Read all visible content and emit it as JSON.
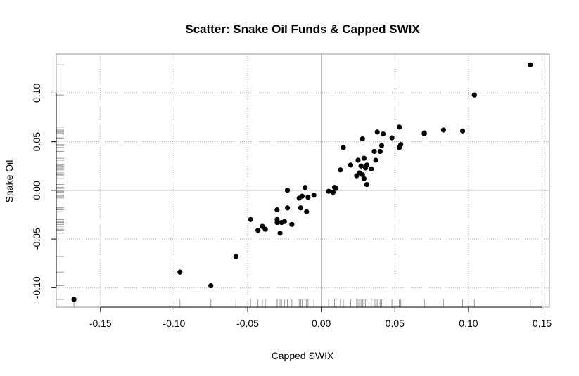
{
  "chart_data": {
    "type": "scatter",
    "title": "Scatter: Snake Oil Funds & Capped SWIX",
    "xlabel": "Capped SWIX",
    "ylabel": "Snake Oil",
    "xlim": [
      -0.18,
      0.155
    ],
    "ylim": [
      -0.12,
      0.14
    ],
    "xticks": [
      -0.15,
      -0.1,
      -0.05,
      0.0,
      0.05,
      0.1,
      0.15
    ],
    "xtick_labels": [
      "-0.15",
      "-0.10",
      "-0.05",
      "0.00",
      "0.05",
      "0.10",
      "0.15"
    ],
    "yticks": [
      -0.1,
      -0.05,
      0.0,
      0.05,
      0.1
    ],
    "ytick_labels": [
      "-0.10",
      "-0.05",
      "0.00",
      "0.05",
      "0.10"
    ],
    "grid": true,
    "reference_lines": {
      "x": 0,
      "y": 0
    },
    "rug": true,
    "colors": {
      "points": "#000000",
      "grid": "#aaaaaa",
      "rug": "#999999",
      "box": "#999999"
    },
    "points": [
      [
        -0.168,
        -0.112
      ],
      [
        -0.096,
        -0.084
      ],
      [
        -0.075,
        -0.098
      ],
      [
        -0.058,
        -0.068
      ],
      [
        -0.048,
        -0.03
      ],
      [
        -0.043,
        -0.041
      ],
      [
        -0.04,
        -0.037
      ],
      [
        -0.038,
        -0.04
      ],
      [
        -0.03,
        -0.02
      ],
      [
        -0.03,
        -0.033
      ],
      [
        -0.028,
        -0.044
      ],
      [
        -0.03,
        -0.03
      ],
      [
        -0.027,
        -0.033
      ],
      [
        -0.025,
        -0.032
      ],
      [
        -0.023,
        0.0
      ],
      [
        -0.023,
        -0.018
      ],
      [
        -0.02,
        -0.035
      ],
      [
        -0.015,
        -0.008
      ],
      [
        -0.014,
        -0.018
      ],
      [
        -0.013,
        -0.006
      ],
      [
        -0.011,
        0.003
      ],
      [
        -0.01,
        -0.022
      ],
      [
        -0.009,
        -0.007
      ],
      [
        -0.005,
        -0.005
      ],
      [
        0.005,
        -0.001
      ],
      [
        0.008,
        -0.002
      ],
      [
        0.009,
        0.003
      ],
      [
        0.01,
        0.002
      ],
      [
        0.013,
        0.021
      ],
      [
        0.015,
        0.044
      ],
      [
        0.02,
        0.026
      ],
      [
        0.024,
        0.015
      ],
      [
        0.025,
        0.031
      ],
      [
        0.026,
        0.018
      ],
      [
        0.027,
        0.025
      ],
      [
        0.028,
        0.016
      ],
      [
        0.028,
        0.053
      ],
      [
        0.029,
        0.033
      ],
      [
        0.029,
        0.012
      ],
      [
        0.03,
        0.023
      ],
      [
        0.031,
        0.026
      ],
      [
        0.031,
        0.006
      ],
      [
        0.034,
        0.022
      ],
      [
        0.036,
        0.04
      ],
      [
        0.037,
        0.031
      ],
      [
        0.038,
        0.06
      ],
      [
        0.04,
        0.04
      ],
      [
        0.041,
        0.046
      ],
      [
        0.042,
        0.058
      ],
      [
        0.048,
        0.054
      ],
      [
        0.053,
        0.065
      ],
      [
        0.053,
        0.044
      ],
      [
        0.054,
        0.047
      ],
      [
        0.07,
        0.058
      ],
      [
        0.07,
        0.059
      ],
      [
        0.083,
        0.062
      ],
      [
        0.096,
        0.061
      ],
      [
        0.104,
        0.098
      ],
      [
        0.142,
        0.129
      ]
    ]
  }
}
